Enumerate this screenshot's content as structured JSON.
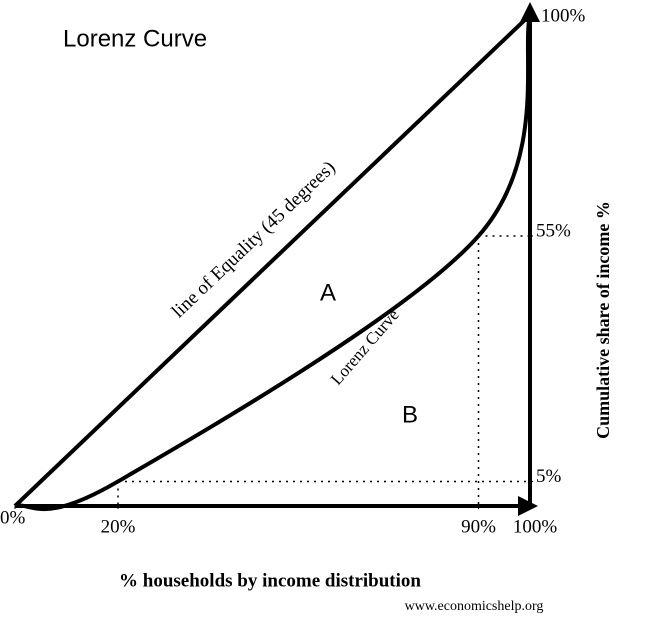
{
  "chart_data": {
    "type": "line",
    "title": "Lorenz Curve",
    "xlabel": "% households by income distribution",
    "ylabel": "Cumulative share of income %",
    "source": "www.economicshelp.org",
    "xlim": [
      0,
      100
    ],
    "ylim": [
      0,
      100
    ],
    "xticks": [
      {
        "value": 0,
        "label": "0%"
      },
      {
        "value": 20,
        "label": "20%"
      },
      {
        "value": 90,
        "label": "90%"
      },
      {
        "value": 100,
        "label": "100%"
      }
    ],
    "yticks": [
      {
        "value": 5,
        "label": "5%"
      },
      {
        "value": 55,
        "label": "55%"
      },
      {
        "value": 100,
        "label": "100%"
      }
    ],
    "series": [
      {
        "name": "line of Equality (45 degrees)",
        "color": "#000000",
        "x": [
          0,
          100
        ],
        "values": [
          0,
          100
        ]
      },
      {
        "name": "Lorenz Curve",
        "color": "#000000",
        "x": [
          0,
          20,
          90,
          100
        ],
        "values": [
          0,
          5,
          55,
          100
        ]
      }
    ],
    "annotations": [
      "A",
      "B"
    ]
  }
}
